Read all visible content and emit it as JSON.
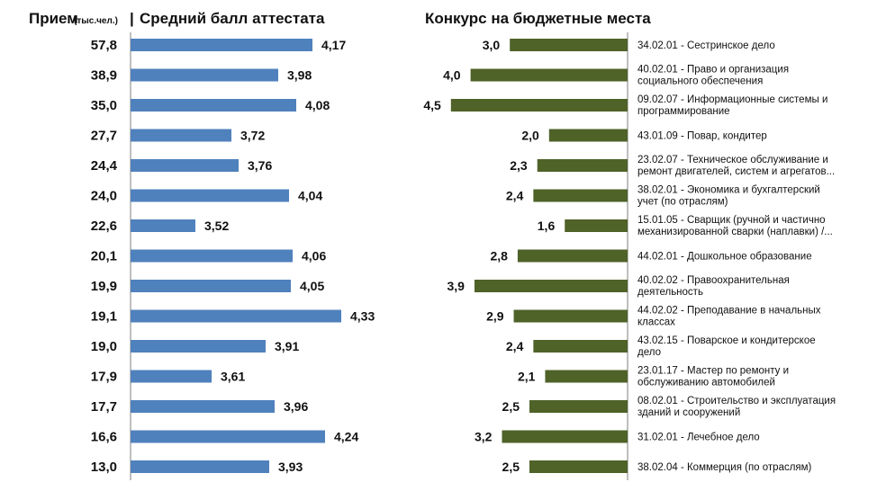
{
  "header": {
    "admission_title": "Прием",
    "admission_unit": "(тыс.чел.)",
    "separator": "|",
    "score_title": "Средний балл аттестата",
    "competition_title": "Конкурс на бюджетные места"
  },
  "colors": {
    "score_bar": "#4f81bd",
    "competition_bar": "#4f6228",
    "axis_line": "#7f7f7f"
  },
  "chart_data": [
    {
      "type": "bar",
      "orientation": "horizontal",
      "title": "Средний балл аттестата",
      "row_labels_title": "Прием (тыс.чел.)",
      "row_labels": [
        "57,8",
        "38,9",
        "35,0",
        "27,7",
        "24,4",
        "24,0",
        "22,6",
        "20,1",
        "19,9",
        "19,1",
        "19,0",
        "17,9",
        "17,7",
        "16,6",
        "13,0"
      ],
      "values": [
        4.17,
        3.98,
        4.08,
        3.72,
        3.76,
        4.04,
        3.52,
        4.06,
        4.05,
        4.33,
        3.91,
        3.61,
        3.96,
        4.24,
        3.93
      ],
      "value_labels": [
        "4,17",
        "3,98",
        "4,08",
        "3,72",
        "3,76",
        "4,04",
        "3,52",
        "4,06",
        "4,05",
        "4,33",
        "3,91",
        "3,61",
        "3,96",
        "4,24",
        "3,93"
      ],
      "xlim": [
        0,
        5
      ]
    },
    {
      "type": "bar",
      "orientation": "horizontal",
      "direction": "right-to-left",
      "title": "Конкурс на бюджетные места",
      "categories": [
        [
          "34.02.01 - Сестринское дело"
        ],
        [
          "40.02.01 - Право и организация",
          "социального обеспечения"
        ],
        [
          "09.02.07 - Информационные системы и",
          "программирование"
        ],
        [
          "43.01.09 - Повар, кондитер"
        ],
        [
          "23.02.07 - Техническое обслуживание и",
          "ремонт двигателей, систем и агрегатов..."
        ],
        [
          "38.02.01 - Экономика и бухгалтерский",
          "учет (по отраслям)"
        ],
        [
          "15.01.05 - Сварщик (ручной и частично",
          "механизированной сварки (наплавки) /..."
        ],
        [
          "44.02.01 - Дошкольное образование"
        ],
        [
          "40.02.02 - Правоохранительная",
          "деятельность"
        ],
        [
          "44.02.02 - Преподавание в начальных",
          "классах"
        ],
        [
          "43.02.15 - Поварское и кондитерское",
          "дело"
        ],
        [
          "23.01.17 - Мастер по ремонту и",
          "обслуживанию автомобилей"
        ],
        [
          "08.02.01 - Строительство и эксплуатация",
          "зданий и сооружений"
        ],
        [
          "31.02.01 - Лечебное дело"
        ],
        [
          "38.02.04 - Коммерция (по отраслям)"
        ]
      ],
      "values": [
        3.0,
        4.0,
        4.5,
        2.0,
        2.3,
        2.4,
        1.6,
        2.8,
        3.9,
        2.9,
        2.4,
        2.1,
        2.5,
        3.2,
        2.5
      ],
      "value_labels": [
        "3,0",
        "4,0",
        "4,5",
        "2,0",
        "2,3",
        "2,4",
        "1,6",
        "2,8",
        "3,9",
        "2,9",
        "2,4",
        "2,1",
        "2,5",
        "3,2",
        "2,5"
      ],
      "xlim": [
        0,
        4.5
      ]
    }
  ]
}
